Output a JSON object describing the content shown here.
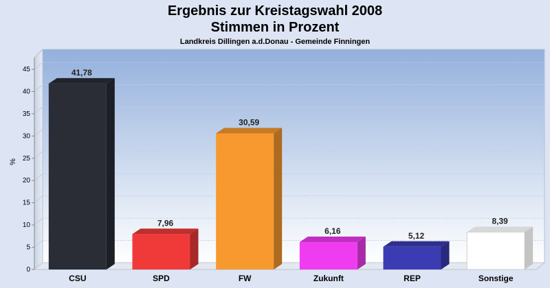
{
  "chart_data": {
    "type": "bar",
    "title_line1": "Ergebnis zur Kreistagswahl 2008",
    "title_line2": "Stimmen in Prozent",
    "subtitle": "Landkreis Dillingen a.d.Donau - Gemeinde Finningen",
    "ylabel": "%",
    "ylim": [
      0,
      45
    ],
    "yticks": [
      0,
      5,
      10,
      15,
      20,
      25,
      30,
      35,
      40,
      45
    ],
    "categories": [
      "CSU",
      "SPD",
      "FW",
      "Zukunft",
      "REP",
      "Sonstige"
    ],
    "values": [
      41.78,
      7.96,
      30.59,
      6.16,
      5.12,
      8.39
    ],
    "value_labels": [
      "41,78",
      "7,96",
      "30,59",
      "6,16",
      "5,12",
      "8,39"
    ],
    "colors": [
      "#2a2d36",
      "#f03a3a",
      "#f7992e",
      "#f03cf0",
      "#3b3bb3",
      "#ffffff"
    ],
    "grid": true
  }
}
